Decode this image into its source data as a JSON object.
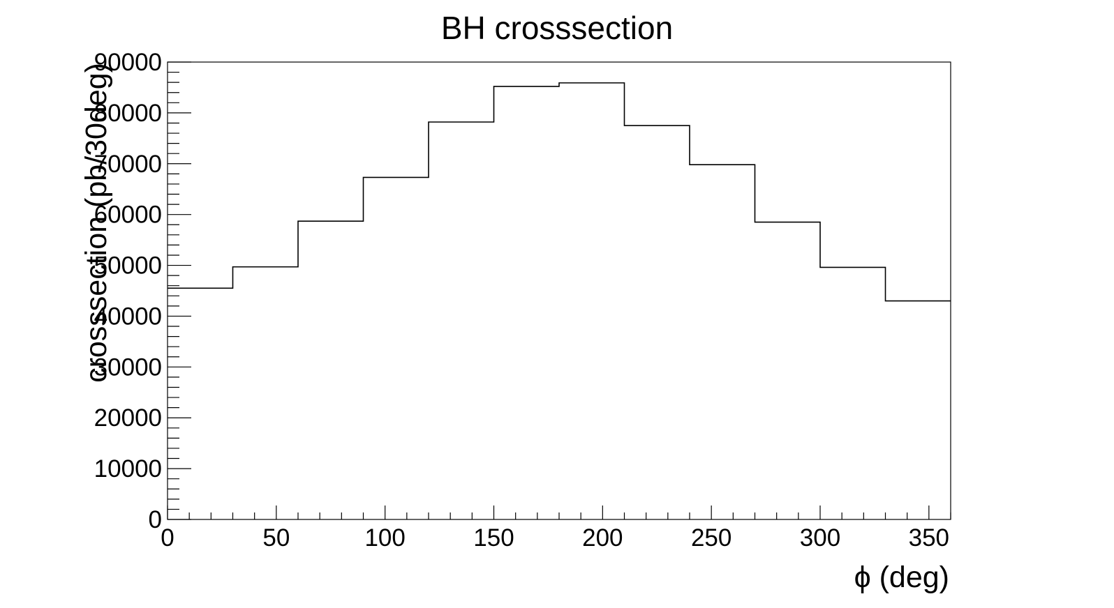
{
  "chart_data": {
    "type": "bar",
    "title": "BH crosssection",
    "xlabel": "ϕ (deg)",
    "ylabel": "crosssection (pb/30deg)",
    "xlim": [
      0,
      360
    ],
    "ylim": [
      0,
      90000
    ],
    "x_ticks": [
      0,
      50,
      100,
      150,
      200,
      250,
      300,
      350
    ],
    "x_tick_labels": [
      "0",
      "50",
      "100",
      "150",
      "200",
      "250",
      "300",
      "350"
    ],
    "y_ticks": [
      0,
      10000,
      20000,
      30000,
      40000,
      50000,
      60000,
      70000,
      80000,
      90000
    ],
    "y_tick_labels": [
      "0",
      "10000",
      "20000",
      "30000",
      "40000",
      "50000",
      "60000",
      "70000",
      "80000",
      "90000"
    ],
    "bin_edges": [
      0,
      30,
      60,
      90,
      120,
      150,
      180,
      210,
      240,
      270,
      300,
      330,
      360
    ],
    "values": [
      45500,
      49700,
      58700,
      67300,
      78200,
      85200,
      85900,
      77500,
      69800,
      58500,
      49600,
      43000
    ],
    "grid": false,
    "legend": false,
    "line_color": "#000000"
  }
}
